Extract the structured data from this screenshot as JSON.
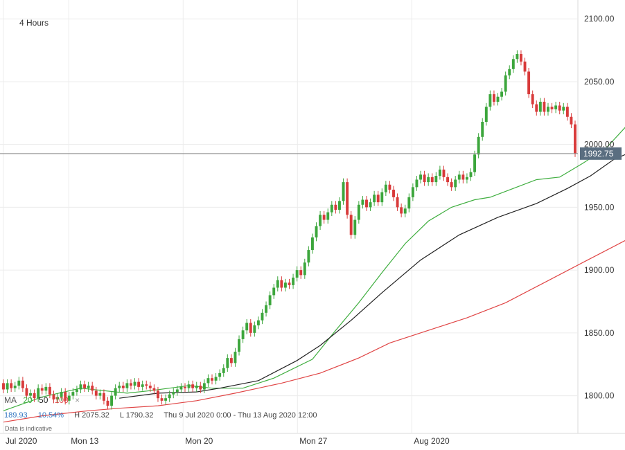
{
  "header": {
    "timeframe": "4 Hours"
  },
  "indicator_bar": {
    "label": "MA",
    "periods": [
      "20",
      "50",
      "100"
    ],
    "close_symbol": "×",
    "colors": {
      "ma20": "#3fae3f",
      "ma50": "#222222",
      "ma100": "#e04545"
    }
  },
  "stats": {
    "change": "189.93",
    "change_pct": "10.54%",
    "high": "H 2075.32",
    "low": "L 1790.32",
    "range": "Thu 9 Jul 2020 0:00 - Thu 13 Aug 2020 12:00"
  },
  "note": "Data is indicative",
  "chart_data": {
    "type": "candlestick",
    "title": "",
    "timeframe": "4 Hours",
    "x_range": [
      "2020-07-09",
      "2020-08-13"
    ],
    "ylim": [
      1770,
      2115
    ],
    "y_ticks": [
      1800,
      1850,
      1900,
      1950,
      2000,
      2050,
      2100
    ],
    "y_tick_labels": [
      "1800.00",
      "1850.00",
      "1900.00",
      "1950.00",
      "2000.00",
      "2050.00",
      "2100.00"
    ],
    "x_tick_labels": [
      {
        "label": "Jul 2020",
        "date": "2020-07-09"
      },
      {
        "label": "Mon 13",
        "date": "2020-07-13"
      },
      {
        "label": "Mon 20",
        "date": "2020-07-20"
      },
      {
        "label": "Mon 27",
        "date": "2020-07-27"
      },
      {
        "label": "Aug 2020",
        "date": "2020-08-03"
      }
    ],
    "current_price": 1992.75,
    "current_price_label": "1992.75",
    "grid": true,
    "up_color": "#3ca63c",
    "down_color": "#d83a3a",
    "series": [
      {
        "name": "MA 20",
        "color": "#3fae3f",
        "points": [
          [
            0,
            1788
          ],
          [
            10,
            1799
          ],
          [
            20,
            1806
          ],
          [
            32,
            1802
          ],
          [
            38,
            1804
          ],
          [
            48,
            1808
          ],
          [
            54,
            1806
          ],
          [
            62,
            1806
          ],
          [
            70,
            1814
          ],
          [
            80,
            1829
          ],
          [
            86,
            1852
          ],
          [
            92,
            1874
          ],
          [
            98,
            1898
          ],
          [
            104,
            1921
          ],
          [
            110,
            1939
          ],
          [
            116,
            1950
          ],
          [
            122,
            1956
          ],
          [
            126,
            1958
          ],
          [
            132,
            1965
          ],
          [
            138,
            1972
          ],
          [
            144,
            1974
          ],
          [
            150,
            1985
          ],
          [
            156,
            1997
          ],
          [
            162,
            2017
          ],
          [
            168,
            2039
          ],
          [
            172,
            2046
          ],
          [
            174,
            2046
          ],
          [
            178,
            2040
          ]
        ]
      },
      {
        "name": "MA 50",
        "color": "#222222",
        "points": [
          [
            30,
            1798
          ],
          [
            40,
            1802
          ],
          [
            50,
            1803
          ],
          [
            56,
            1806
          ],
          [
            66,
            1812
          ],
          [
            76,
            1828
          ],
          [
            82,
            1840
          ],
          [
            90,
            1860
          ],
          [
            98,
            1882
          ],
          [
            108,
            1908
          ],
          [
            118,
            1928
          ],
          [
            128,
            1942
          ],
          [
            138,
            1953
          ],
          [
            146,
            1965
          ],
          [
            152,
            1975
          ],
          [
            158,
            1988
          ],
          [
            164,
            1996
          ],
          [
            170,
            2004
          ],
          [
            178,
            2009
          ]
        ]
      },
      {
        "name": "MA 100",
        "color": "#e04545",
        "points": [
          [
            0,
            1779
          ],
          [
            10,
            1784
          ],
          [
            22,
            1788
          ],
          [
            30,
            1790
          ],
          [
            40,
            1792
          ],
          [
            50,
            1796
          ],
          [
            60,
            1802
          ],
          [
            72,
            1810
          ],
          [
            82,
            1818
          ],
          [
            92,
            1830
          ],
          [
            100,
            1842
          ],
          [
            110,
            1852
          ],
          [
            120,
            1862
          ],
          [
            130,
            1874
          ],
          [
            140,
            1890
          ],
          [
            150,
            1906
          ],
          [
            160,
            1922
          ],
          [
            170,
            1938
          ],
          [
            178,
            1953
          ]
        ]
      }
    ],
    "candles": [
      {
        "o": 1810,
        "c": 1805
      },
      {
        "o": 1805,
        "c": 1810
      },
      {
        "o": 1810,
        "c": 1806
      },
      {
        "o": 1806,
        "c": 1808
      },
      {
        "o": 1808,
        "c": 1812
      },
      {
        "o": 1812,
        "c": 1806
      },
      {
        "o": 1806,
        "c": 1800
      },
      {
        "o": 1800,
        "c": 1802
      },
      {
        "o": 1802,
        "c": 1798
      },
      {
        "o": 1798,
        "c": 1806
      },
      {
        "o": 1806,
        "c": 1804
      },
      {
        "o": 1804,
        "c": 1807
      },
      {
        "o": 1807,
        "c": 1801
      },
      {
        "o": 1801,
        "c": 1797
      },
      {
        "o": 1797,
        "c": 1799
      },
      {
        "o": 1799,
        "c": 1803
      },
      {
        "o": 1803,
        "c": 1796
      },
      {
        "o": 1796,
        "c": 1800
      },
      {
        "o": 1800,
        "c": 1803
      },
      {
        "o": 1803,
        "c": 1805
      },
      {
        "o": 1805,
        "c": 1809
      },
      {
        "o": 1809,
        "c": 1806
      },
      {
        "o": 1806,
        "c": 1808
      },
      {
        "o": 1808,
        "c": 1804
      },
      {
        "o": 1804,
        "c": 1800
      },
      {
        "o": 1800,
        "c": 1802
      },
      {
        "o": 1802,
        "c": 1796
      },
      {
        "o": 1796,
        "c": 1792
      },
      {
        "o": 1792,
        "c": 1800
      },
      {
        "o": 1800,
        "c": 1806
      },
      {
        "o": 1806,
        "c": 1808
      },
      {
        "o": 1808,
        "c": 1806
      },
      {
        "o": 1806,
        "c": 1810
      },
      {
        "o": 1810,
        "c": 1808
      },
      {
        "o": 1808,
        "c": 1811
      },
      {
        "o": 1811,
        "c": 1807
      },
      {
        "o": 1807,
        "c": 1809
      },
      {
        "o": 1809,
        "c": 1808
      },
      {
        "o": 1808,
        "c": 1806
      },
      {
        "o": 1806,
        "c": 1804
      },
      {
        "o": 1804,
        "c": 1798
      },
      {
        "o": 1798,
        "c": 1796
      },
      {
        "o": 1796,
        "c": 1798
      },
      {
        "o": 1798,
        "c": 1801
      },
      {
        "o": 1801,
        "c": 1803
      },
      {
        "o": 1803,
        "c": 1805
      },
      {
        "o": 1805,
        "c": 1807
      },
      {
        "o": 1807,
        "c": 1806
      },
      {
        "o": 1806,
        "c": 1809
      },
      {
        "o": 1809,
        "c": 1806
      },
      {
        "o": 1806,
        "c": 1808
      },
      {
        "o": 1808,
        "c": 1805
      },
      {
        "o": 1805,
        "c": 1810
      },
      {
        "o": 1810,
        "c": 1814
      },
      {
        "o": 1814,
        "c": 1812
      },
      {
        "o": 1812,
        "c": 1815
      },
      {
        "o": 1815,
        "c": 1818
      },
      {
        "o": 1818,
        "c": 1822
      },
      {
        "o": 1822,
        "c": 1830
      },
      {
        "o": 1830,
        "c": 1826
      },
      {
        "o": 1826,
        "c": 1835
      },
      {
        "o": 1835,
        "c": 1845
      },
      {
        "o": 1845,
        "c": 1852
      },
      {
        "o": 1852,
        "c": 1858
      },
      {
        "o": 1858,
        "c": 1850
      },
      {
        "o": 1850,
        "c": 1856
      },
      {
        "o": 1856,
        "c": 1860
      },
      {
        "o": 1860,
        "c": 1866
      },
      {
        "o": 1866,
        "c": 1872
      },
      {
        "o": 1872,
        "c": 1880
      },
      {
        "o": 1880,
        "c": 1886
      },
      {
        "o": 1886,
        "c": 1892
      },
      {
        "o": 1892,
        "c": 1886
      },
      {
        "o": 1886,
        "c": 1890
      },
      {
        "o": 1890,
        "c": 1888
      },
      {
        "o": 1888,
        "c": 1894
      },
      {
        "o": 1894,
        "c": 1900
      },
      {
        "o": 1900,
        "c": 1896
      },
      {
        "o": 1896,
        "c": 1906
      },
      {
        "o": 1906,
        "c": 1916
      },
      {
        "o": 1916,
        "c": 1926
      },
      {
        "o": 1926,
        "c": 1935
      },
      {
        "o": 1935,
        "c": 1944
      },
      {
        "o": 1944,
        "c": 1940
      },
      {
        "o": 1940,
        "c": 1946
      },
      {
        "o": 1946,
        "c": 1952
      },
      {
        "o": 1952,
        "c": 1948
      },
      {
        "o": 1948,
        "c": 1955
      },
      {
        "o": 1955,
        "c": 1970
      },
      {
        "o": 1970,
        "c": 1944
      },
      {
        "o": 1944,
        "c": 1928
      },
      {
        "o": 1928,
        "c": 1940
      },
      {
        "o": 1940,
        "c": 1952
      },
      {
        "o": 1952,
        "c": 1956
      },
      {
        "o": 1956,
        "c": 1950
      },
      {
        "o": 1950,
        "c": 1954
      },
      {
        "o": 1954,
        "c": 1960
      },
      {
        "o": 1960,
        "c": 1954
      },
      {
        "o": 1954,
        "c": 1962
      },
      {
        "o": 1962,
        "c": 1968
      },
      {
        "o": 1968,
        "c": 1964
      },
      {
        "o": 1964,
        "c": 1958
      },
      {
        "o": 1958,
        "c": 1950
      },
      {
        "o": 1950,
        "c": 1945
      },
      {
        "o": 1945,
        "c": 1949
      },
      {
        "o": 1949,
        "c": 1958
      },
      {
        "o": 1958,
        "c": 1966
      },
      {
        "o": 1966,
        "c": 1972
      },
      {
        "o": 1972,
        "c": 1976
      },
      {
        "o": 1976,
        "c": 1970
      },
      {
        "o": 1970,
        "c": 1974
      },
      {
        "o": 1974,
        "c": 1970
      },
      {
        "o": 1970,
        "c": 1975
      },
      {
        "o": 1975,
        "c": 1980
      },
      {
        "o": 1980,
        "c": 1974
      },
      {
        "o": 1974,
        "c": 1970
      },
      {
        "o": 1970,
        "c": 1966
      },
      {
        "o": 1966,
        "c": 1972
      },
      {
        "o": 1972,
        "c": 1976
      },
      {
        "o": 1976,
        "c": 1972
      },
      {
        "o": 1972,
        "c": 1974
      },
      {
        "o": 1974,
        "c": 1978
      },
      {
        "o": 1978,
        "c": 1992
      },
      {
        "o": 1992,
        "c": 2006
      },
      {
        "o": 2006,
        "c": 2018
      },
      {
        "o": 2018,
        "c": 2030
      },
      {
        "o": 2030,
        "c": 2040
      },
      {
        "o": 2040,
        "c": 2034
      },
      {
        "o": 2034,
        "c": 2038
      },
      {
        "o": 2038,
        "c": 2042
      },
      {
        "o": 2042,
        "c": 2055
      },
      {
        "o": 2055,
        "c": 2060
      },
      {
        "o": 2060,
        "c": 2068
      },
      {
        "o": 2068,
        "c": 2072
      },
      {
        "o": 2072,
        "c": 2066
      },
      {
        "o": 2066,
        "c": 2058
      },
      {
        "o": 2058,
        "c": 2040
      },
      {
        "o": 2040,
        "c": 2032
      },
      {
        "o": 2032,
        "c": 2026
      },
      {
        "o": 2026,
        "c": 2034
      },
      {
        "o": 2034,
        "c": 2026
      },
      {
        "o": 2026,
        "c": 2030
      },
      {
        "o": 2030,
        "c": 2028
      },
      {
        "o": 2028,
        "c": 2031
      },
      {
        "o": 2031,
        "c": 2027
      },
      {
        "o": 2027,
        "c": 2030
      },
      {
        "o": 2030,
        "c": 2022
      },
      {
        "o": 2022,
        "c": 2016
      },
      {
        "o": 2016,
        "c": 1993
      }
    ]
  }
}
